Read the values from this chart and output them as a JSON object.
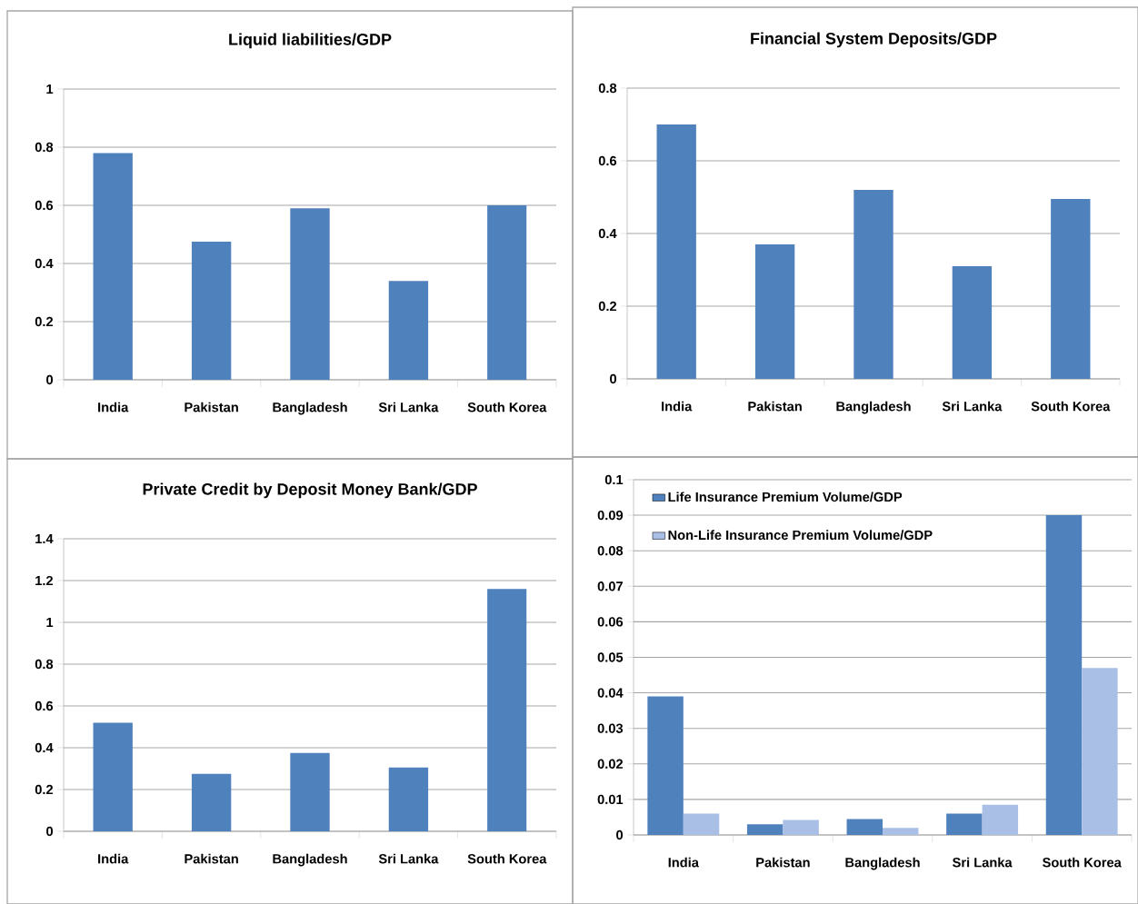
{
  "chart_data": [
    {
      "type": "bar",
      "title": "Liquid liabilities/GDP",
      "categories": [
        "India",
        "Pakistan",
        "Bangladesh",
        "Sri Lanka",
        "South Korea"
      ],
      "values": [
        0.78,
        0.475,
        0.59,
        0.34,
        0.6
      ],
      "color": "#4f81bd",
      "ylim": [
        0,
        1
      ],
      "yticks": [
        0,
        0.2,
        0.4,
        0.6,
        0.8,
        1
      ],
      "grid": "y",
      "legend": false
    },
    {
      "type": "bar",
      "title": "Financial System Deposits/GDP",
      "categories": [
        "India",
        "Pakistan",
        "Bangladesh",
        "Sri Lanka",
        "South Korea"
      ],
      "values": [
        0.7,
        0.37,
        0.52,
        0.31,
        0.495
      ],
      "color": "#4f81bd",
      "ylim": [
        0,
        0.8
      ],
      "yticks": [
        0,
        0.2,
        0.4,
        0.6,
        0.8
      ],
      "grid": "y",
      "legend": false
    },
    {
      "type": "bar",
      "title": "Private Credit by Deposit Money Bank/GDP",
      "categories": [
        "India",
        "Pakistan",
        "Bangladesh",
        "Sri Lanka",
        "South Korea"
      ],
      "values": [
        0.52,
        0.275,
        0.375,
        0.305,
        1.16
      ],
      "color": "#4f81bd",
      "ylim": [
        0,
        1.4
      ],
      "yticks": [
        0,
        0.2,
        0.4,
        0.6,
        0.8,
        1,
        1.2,
        1.4
      ],
      "grid": "y",
      "legend": false
    },
    {
      "type": "bar",
      "categories": [
        "India",
        "Pakistan",
        "Bangladesh",
        "Sri Lanka",
        "South Korea"
      ],
      "series": [
        {
          "name": "Life Insurance Premium Volume/GDP",
          "color": "#4f81bd",
          "values": [
            0.039,
            0.003,
            0.0045,
            0.006,
            0.09
          ]
        },
        {
          "name": "Non-Life Insurance Premium Volume/GDP",
          "color": "#a9bfe6",
          "values": [
            0.006,
            0.0042,
            0.002,
            0.0085,
            0.047
          ]
        }
      ],
      "ylim": [
        0,
        0.1
      ],
      "yticks": [
        0,
        0.01,
        0.02,
        0.03,
        0.04,
        0.05,
        0.06,
        0.07,
        0.08,
        0.09,
        0.1
      ],
      "grid": "y",
      "legend": "top left"
    }
  ]
}
